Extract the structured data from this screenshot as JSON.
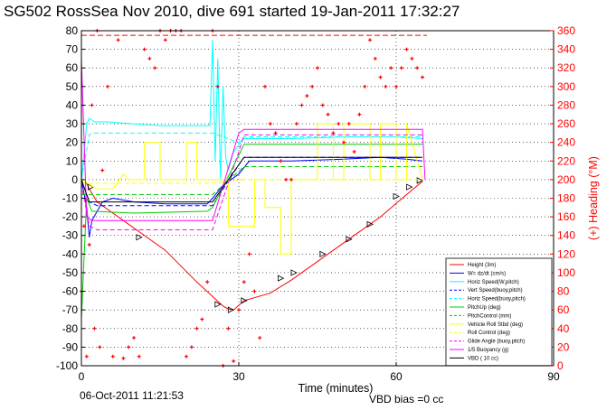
{
  "chart_data": {
    "type": "line",
    "title": "SG502 RossSea Nov 2010, dive 691 started 19-Jan-2011 17:32:27",
    "xlabel": "Time (minutes)",
    "ylabel_right": "(+) Heading (°M)",
    "footer_left": "06-Oct-2011 11:21:53",
    "footer_right": "VBD bias =0 cc",
    "xlim": [
      0,
      90
    ],
    "ylim_left": [
      -100,
      80
    ],
    "ylim_right": [
      0,
      360
    ],
    "x_ticks": [
      "0",
      "30",
      "60",
      "90"
    ],
    "y_ticks_left": [
      "80",
      "70",
      "60",
      "50",
      "40",
      "30",
      "20",
      "10",
      "0",
      "-10",
      "-20",
      "-30",
      "-40",
      "-50",
      "-60",
      "-70",
      "-80",
      "-90",
      "-100"
    ],
    "y_ticks_right": [
      "360",
      "340",
      "320",
      "300",
      "280",
      "260",
      "240",
      "220",
      "200",
      "180",
      "160",
      "140",
      "120",
      "100",
      "80",
      "60",
      "40",
      "20",
      "0"
    ],
    "grid": "dotted",
    "legend_position": "lower-right",
    "colors": {
      "left_axis": "#000000",
      "right_axis": "#ff0000"
    },
    "legend": [
      {
        "name": "Height (3m)",
        "color": "#ff0000",
        "style": "solid"
      },
      {
        "name": "W= dz/dt (cm/s)",
        "color": "#0000ff",
        "style": "solid"
      },
      {
        "name": "Horiz Speed(W,pitch)",
        "color": "#00ffff",
        "style": "solid"
      },
      {
        "name": "Vert Speed(buoy,pitch)",
        "color": "#0000ff",
        "style": "dashed"
      },
      {
        "name": "Horiz Speed(buoy,pitch)",
        "color": "#00ffff",
        "style": "dashed"
      },
      {
        "name": "PitchUp (deg)",
        "color": "#00cc00",
        "style": "solid"
      },
      {
        "name": "PitchControl (mm)",
        "color": "#00cc00",
        "style": "dashed"
      },
      {
        "name": "Vehicle Roll Stbd (deg)",
        "color": "#ffff00",
        "style": "solid"
      },
      {
        "name": "Roll Control (deg)",
        "color": "#ffff00",
        "style": "dashed"
      },
      {
        "name": "Glide Angle (buoy,pitch)",
        "color": "#ff00ff",
        "style": "dashed"
      },
      {
        "name": "1/5 Buoyancy (g)",
        "color": "#ff00ff",
        "style": "solid"
      },
      {
        "name": "VBD ( 10 cc)",
        "color": "#000000",
        "style": "solid"
      }
    ],
    "series": [
      {
        "name": "Height (3m)",
        "axis": "left",
        "color": "#ff0000",
        "style": "solid",
        "x": [
          0,
          1,
          1.5,
          3,
          8,
          16,
          22,
          27,
          28,
          29,
          31,
          36,
          40,
          47,
          52,
          57,
          62,
          65
        ],
        "y": [
          -2,
          -2,
          -5,
          -12,
          -22,
          -38,
          -55,
          -68,
          -69.5,
          -70,
          -65,
          -61,
          -54,
          -40,
          -30,
          -20,
          -8,
          -1
        ]
      },
      {
        "name": "Triangle markers",
        "axis": "left",
        "color": "#000000",
        "style": "markers",
        "x": [
          1.8,
          11,
          26,
          28.5,
          31,
          38,
          40.5,
          46,
          51,
          55,
          60,
          62.5,
          64.5
        ],
        "y": [
          -4,
          -31,
          -67,
          -70,
          -65,
          -53,
          -50,
          -40,
          -32,
          -24,
          -9,
          -4,
          -0.5
        ]
      },
      {
        "name": "W= dz/dt (cm/s)",
        "axis": "left",
        "color": "#0000ff",
        "style": "solid",
        "x": [
          0,
          1,
          1.5,
          2,
          4,
          6,
          10,
          16,
          24,
          25,
          27,
          30,
          32,
          40,
          50,
          57,
          62,
          65
        ],
        "y": [
          0,
          -15,
          -31,
          -22,
          -12,
          -10,
          -12,
          -13,
          -13,
          -10,
          -3,
          3,
          10,
          10,
          11,
          12,
          11,
          10
        ]
      },
      {
        "name": "Horiz Speed(W,pitch)",
        "axis": "left",
        "color": "#00ffff",
        "style": "solid",
        "x": [
          0,
          1,
          1.5,
          2.5,
          5,
          10,
          15,
          20,
          24.5,
          25,
          25.5,
          26,
          26.5,
          27,
          27.5,
          28,
          29,
          31,
          40,
          50,
          60,
          65
        ],
        "y": [
          -2,
          30,
          33,
          31,
          31,
          30,
          29,
          29,
          29,
          75,
          10,
          65,
          0,
          50,
          12,
          5,
          15,
          22,
          22,
          23,
          23,
          22
        ]
      },
      {
        "name": "Vert Speed(buoy,pitch)",
        "axis": "left",
        "color": "#0000ff",
        "style": "dashed",
        "x": [
          0,
          1.5,
          3,
          24,
          25,
          30,
          31,
          65
        ],
        "y": [
          0,
          -12,
          -14,
          -14,
          -14,
          8,
          12,
          12
        ]
      },
      {
        "name": "Horiz Speed(buoy,pitch)",
        "axis": "left",
        "color": "#00ffff",
        "style": "dashed",
        "x": [
          0,
          1.5,
          2,
          24,
          25,
          30,
          31,
          65
        ],
        "y": [
          0,
          24,
          25,
          25,
          25,
          20,
          23,
          23
        ]
      },
      {
        "name": "PitchUp (deg)",
        "axis": "left",
        "color": "#00cc00",
        "style": "solid",
        "x": [
          0,
          1,
          2,
          10,
          24,
          25,
          30,
          31,
          40,
          50,
          60,
          65
        ],
        "y": [
          -75,
          -10,
          -17,
          -18,
          -17,
          -15,
          13,
          19,
          19,
          19,
          19,
          19
        ]
      },
      {
        "name": "PitchControl (mm)",
        "axis": "left",
        "color": "#00cc00",
        "style": "dashed",
        "x": [
          0,
          1.5,
          24,
          25,
          31,
          65
        ],
        "y": [
          -8,
          -8,
          -8,
          -8,
          7,
          7
        ]
      },
      {
        "name": "Vehicle Roll Stbd (deg)",
        "axis": "left",
        "color": "#ffff00",
        "style": "solid",
        "x": [
          0,
          3,
          6,
          8,
          9,
          12,
          12,
          15,
          15,
          20,
          20,
          22,
          22,
          24,
          25,
          28,
          28,
          33,
          33,
          35,
          35,
          38,
          38,
          40,
          40,
          45,
          45,
          48,
          48,
          50,
          50,
          55,
          55,
          57,
          57,
          60,
          60,
          62,
          62,
          65
        ],
        "y": [
          0,
          -5,
          -5,
          3,
          0,
          0,
          20,
          20,
          0,
          0,
          20,
          20,
          0,
          0,
          0,
          0,
          -25,
          -25,
          0,
          0,
          -15,
          -15,
          -40,
          -40,
          0,
          0,
          30,
          30,
          0,
          0,
          30,
          30,
          0,
          0,
          30,
          30,
          0,
          0,
          30,
          0
        ]
      },
      {
        "name": "Roll Control (deg)",
        "axis": "left",
        "color": "#ffff00",
        "style": "dashed",
        "x": [
          0,
          3,
          24,
          25,
          31,
          65
        ],
        "y": [
          -2,
          -2,
          -2,
          -2,
          0,
          0
        ]
      },
      {
        "name": "Glide Angle (buoy,pitch)",
        "axis": "left",
        "color": "#ff00ff",
        "style": "dashed",
        "x": [
          0,
          1.5,
          3,
          24,
          25,
          30,
          31,
          65
        ],
        "y": [
          -2,
          -25,
          -27,
          -27,
          -27,
          15,
          24,
          24
        ]
      },
      {
        "name": "1/5 Buoyancy (g)",
        "axis": "left",
        "color": "#ff00ff",
        "style": "solid",
        "x": [
          0,
          1,
          2,
          24,
          25,
          30,
          31,
          65,
          65.5
        ],
        "y": [
          65,
          -20,
          -22,
          -22,
          -22,
          25,
          27,
          27,
          0
        ]
      },
      {
        "name": "VBD ( 10 cc)",
        "axis": "left",
        "color": "#000000",
        "style": "solid",
        "x": [
          0,
          1.5,
          24,
          25,
          31,
          65
        ],
        "y": [
          0,
          -12,
          -12,
          -12,
          12,
          12
        ]
      },
      {
        "name": "Heading",
        "axis": "right",
        "color": "#ff0000",
        "style": "plus",
        "x": [
          0,
          0.5,
          1,
          1.5,
          2,
          2.5,
          3,
          3.5,
          4,
          5,
          6,
          7,
          8,
          9,
          10,
          11,
          12,
          13,
          14,
          15,
          16,
          17,
          18,
          19,
          20,
          21,
          22,
          23,
          24,
          25,
          26,
          27,
          28,
          29,
          30,
          31,
          32,
          33,
          34,
          35,
          36,
          37,
          38,
          39,
          40,
          41,
          42,
          43,
          44,
          45,
          46,
          47,
          48,
          49,
          50,
          51,
          52,
          53,
          54,
          55,
          56,
          57,
          58,
          59,
          60,
          61,
          62,
          63,
          64,
          65
        ],
        "y": [
          80,
          150,
          10,
          130,
          280,
          40,
          360,
          20,
          210,
          300,
          10,
          350,
          8,
          20,
          30,
          10,
          340,
          330,
          320,
          360,
          350,
          365,
          365,
          365,
          10,
          20,
          40,
          50,
          90,
          360,
          300,
          0,
          40,
          5,
          60,
          90,
          120,
          80,
          30,
          300,
          260,
          250,
          220,
          200,
          200,
          260,
          280,
          290,
          300,
          320,
          280,
          270,
          250,
          260,
          240,
          260,
          230,
          270,
          300,
          350,
          330,
          310,
          300,
          320,
          300,
          320,
          340,
          330,
          320,
          310
        ]
      }
    ]
  }
}
